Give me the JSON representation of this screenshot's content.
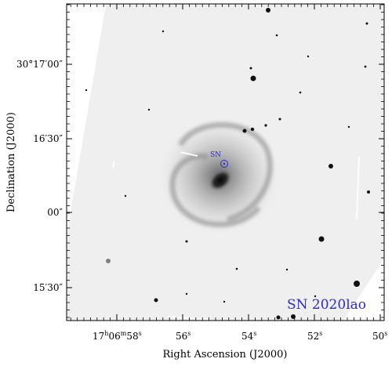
{
  "image": {
    "description_kind": "astronomical grayscale image with WCS axes",
    "background_color": "#f2f2f2",
    "frame_color": "#000000"
  },
  "annotations": {
    "marker_label": "SN",
    "marker_color": "#2a2ad0",
    "object_label": "SN 2020lao",
    "object_label_color": "#2a2ad0"
  },
  "axes": {
    "xlabel": "Right Ascension (J2000)",
    "ylabel": "Declination (J2000)",
    "x_ticks": [
      {
        "label_main": "17",
        "sup1": "h",
        "mid": "06",
        "sup2": "m",
        "tail": "58",
        "sup3": "s",
        "compound": true
      },
      {
        "label_main": "56",
        "sup1": "s",
        "compound": false
      },
      {
        "label_main": "54",
        "sup1": "s",
        "compound": false
      },
      {
        "label_main": "52",
        "sup1": "s",
        "compound": false
      },
      {
        "label_main": "50",
        "sup1": "s",
        "compound": false
      }
    ],
    "y_ticks": [
      {
        "label": "30°17′00″"
      },
      {
        "label": "16′30″"
      },
      {
        "label": "00″"
      },
      {
        "label": "15′30″"
      }
    ]
  }
}
